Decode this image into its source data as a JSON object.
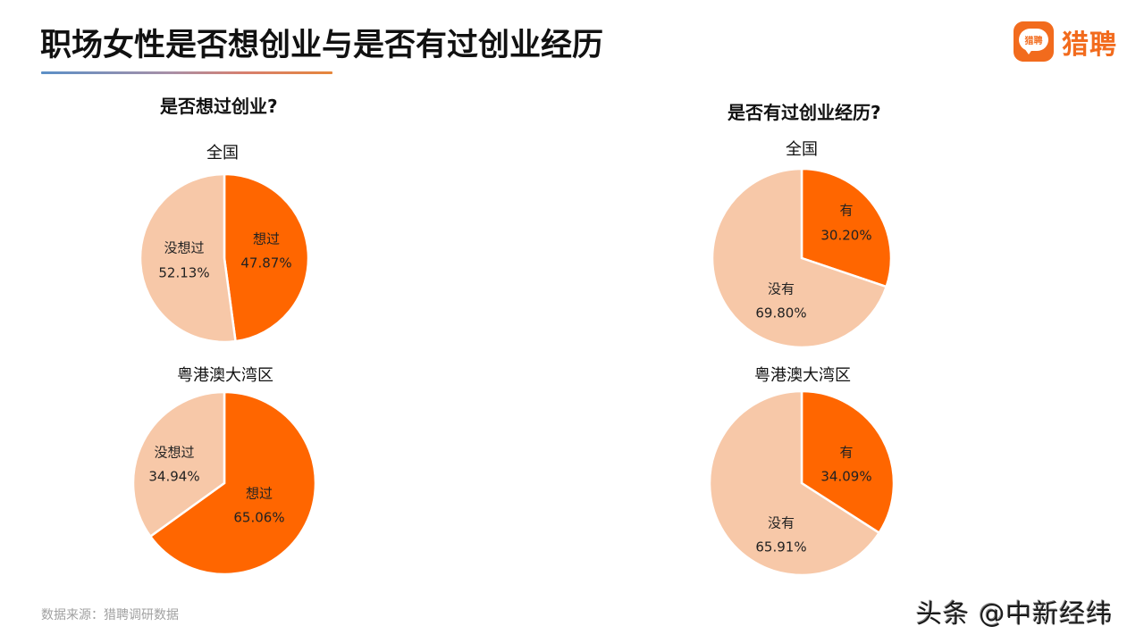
{
  "header": {
    "title": "职场女性是否想创业与是否有过创业经历",
    "logo_text": "猎聘",
    "logo_badge_text": "猎聘",
    "logo_icon": "speech-bubble-icon"
  },
  "sections": [
    {
      "title": "是否想过创业?"
    },
    {
      "title": "是否有过创业经历?"
    }
  ],
  "colors": {
    "primary": "#ff6600",
    "secondary": "#f7c8a8",
    "brand": "#f26b1d"
  },
  "chart_data": [
    {
      "type": "pie",
      "title": "是否想过创业?",
      "subtitle": "全国",
      "categories": [
        "想过",
        "没想过"
      ],
      "values": [
        47.87,
        52.13
      ],
      "labels": [
        "47.87%",
        "52.13%"
      ],
      "colors": [
        "#ff6600",
        "#f7c8a8"
      ]
    },
    {
      "type": "pie",
      "title": "是否想过创业?",
      "subtitle": "粤港澳大湾区",
      "categories": [
        "想过",
        "没想过"
      ],
      "values": [
        65.06,
        34.94
      ],
      "labels": [
        "65.06%",
        "34.94%"
      ],
      "colors": [
        "#ff6600",
        "#f7c8a8"
      ]
    },
    {
      "type": "pie",
      "title": "是否有过创业经历?",
      "subtitle": "全国",
      "categories": [
        "有",
        "没有"
      ],
      "values": [
        30.2,
        69.8
      ],
      "labels": [
        "30.20%",
        "69.80%"
      ],
      "colors": [
        "#ff6600",
        "#f7c8a8"
      ]
    },
    {
      "type": "pie",
      "title": "是否有过创业经历?",
      "subtitle": "粤港澳大湾区",
      "categories": [
        "有",
        "没有"
      ],
      "values": [
        34.09,
        65.91
      ],
      "labels": [
        "34.09%",
        "65.91%"
      ],
      "colors": [
        "#ff6600",
        "#f7c8a8"
      ]
    }
  ],
  "footer": {
    "source": "数据来源：猎聘调研数据",
    "watermark": "头条 @中新经纬"
  }
}
